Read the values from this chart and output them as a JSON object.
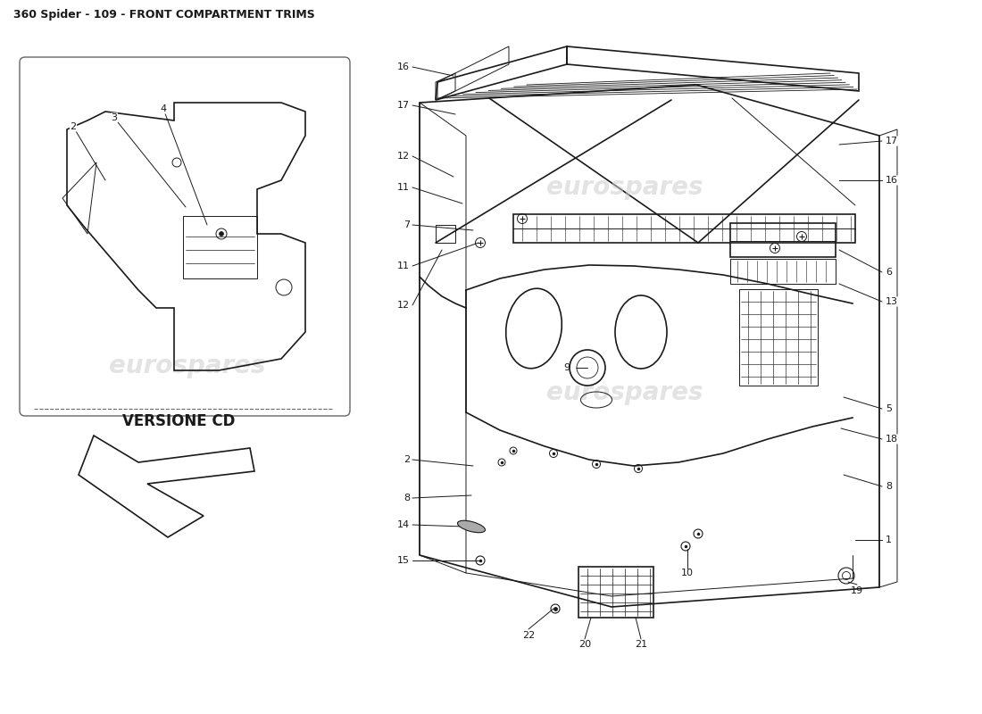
{
  "title": "360 Spider - 109 - FRONT COMPARTMENT TRIMS",
  "title_fontsize": 9,
  "background_color": "#ffffff",
  "line_color": "#1a1a1a",
  "watermark_color": "#cccccc",
  "watermark_text": "eurospares",
  "versione_cd_text": "VERSIONE CD"
}
